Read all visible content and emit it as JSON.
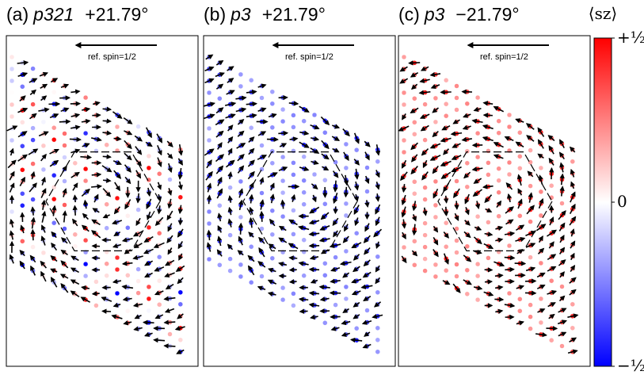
{
  "panels": [
    {
      "label": "(a)",
      "group": "p321",
      "angle": "+21.79°",
      "note": "ref. spin=1/2"
    },
    {
      "label": "(b)",
      "group": "p3",
      "angle": "+21.79°",
      "note": "ref. spin=1/2"
    },
    {
      "label": "(c)",
      "group": "p3",
      "angle": "−21.79°",
      "note": "ref. spin=1/2"
    }
  ],
  "colorbar": {
    "title": "⟨sz⟩",
    "lim": [
      -0.5,
      0.5
    ],
    "ticks": [
      {
        "value": 0.5,
        "label": "+½"
      },
      {
        "value": 0,
        "label": "0"
      },
      {
        "value": -0.5,
        "label": "−½"
      }
    ]
  }
}
